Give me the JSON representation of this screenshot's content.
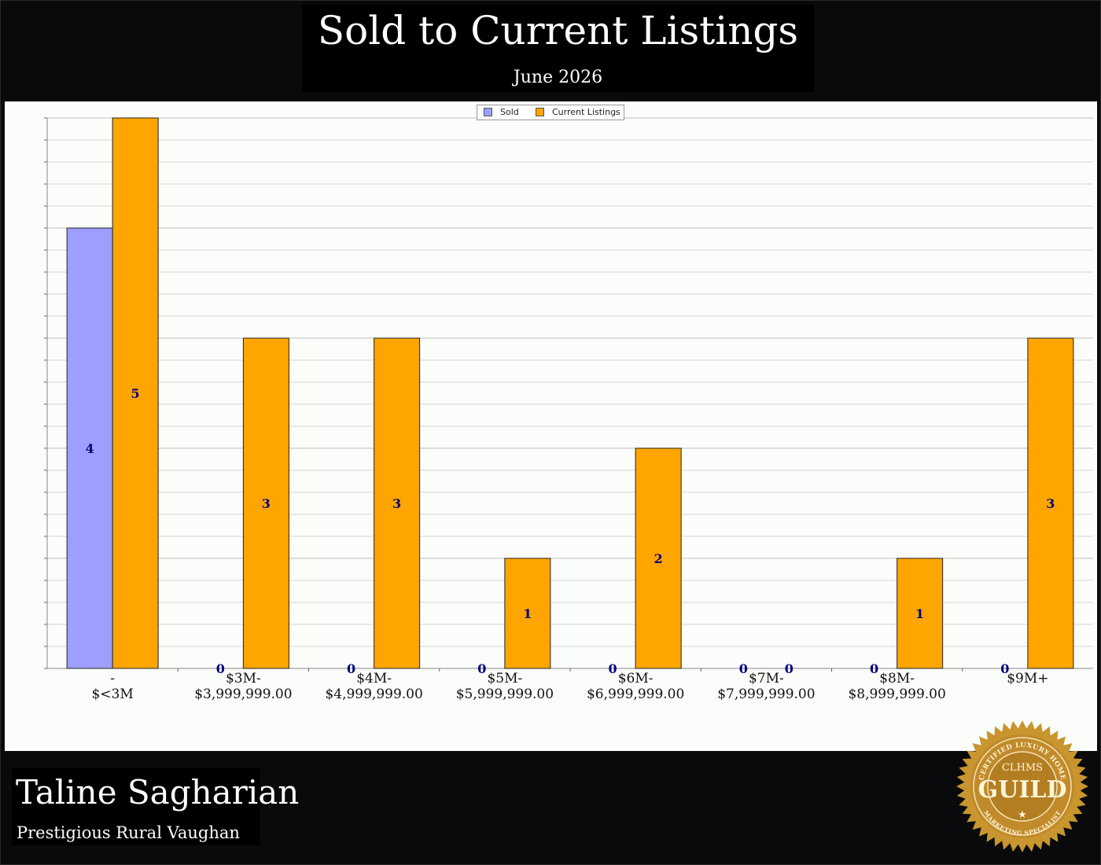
{
  "header": {
    "title": "Sold to Current Listings",
    "subtitle": "June 2026"
  },
  "legend": {
    "sold_label": "Sold",
    "current_label": "Current Listings"
  },
  "agent": {
    "name": "Taline Sagharian",
    "area": "Prestigious Rural Vaughan"
  },
  "badge": {
    "top_text": "CERTIFIED LUXURY HOME",
    "abbr": "CLHMS",
    "word": "GUILD",
    "bottom_text": "MARKETING SPECIALIST"
  },
  "colors": {
    "sold": "#9e9eff",
    "current": "#ffa500",
    "value_label": "#00007a",
    "gold": "#c8952e"
  },
  "chart_data": {
    "type": "bar",
    "title": "Sold to Current Listings",
    "subtitle": "June 2026",
    "categories": [
      [
        "-",
        "$<3M"
      ],
      [
        "$3M-",
        "$3,999,999.00"
      ],
      [
        "$4M-",
        "$4,999,999.00"
      ],
      [
        "$5M-",
        "$5,999,999.00"
      ],
      [
        "$6M-",
        "$6,999,999.00"
      ],
      [
        "$7M-",
        "$7,999,999.00"
      ],
      [
        "$8M-",
        "$8,999,999.00"
      ],
      [
        "$9M+"
      ]
    ],
    "series": [
      {
        "name": "Sold",
        "values": [
          4,
          0,
          0,
          0,
          0,
          0,
          0,
          0
        ]
      },
      {
        "name": "Current Listings",
        "values": [
          5,
          3,
          3,
          1,
          2,
          0,
          1,
          3
        ]
      }
    ],
    "ylim": [
      0,
      5
    ],
    "grid": true,
    "legend_position": "top-center",
    "value_labels": true
  }
}
